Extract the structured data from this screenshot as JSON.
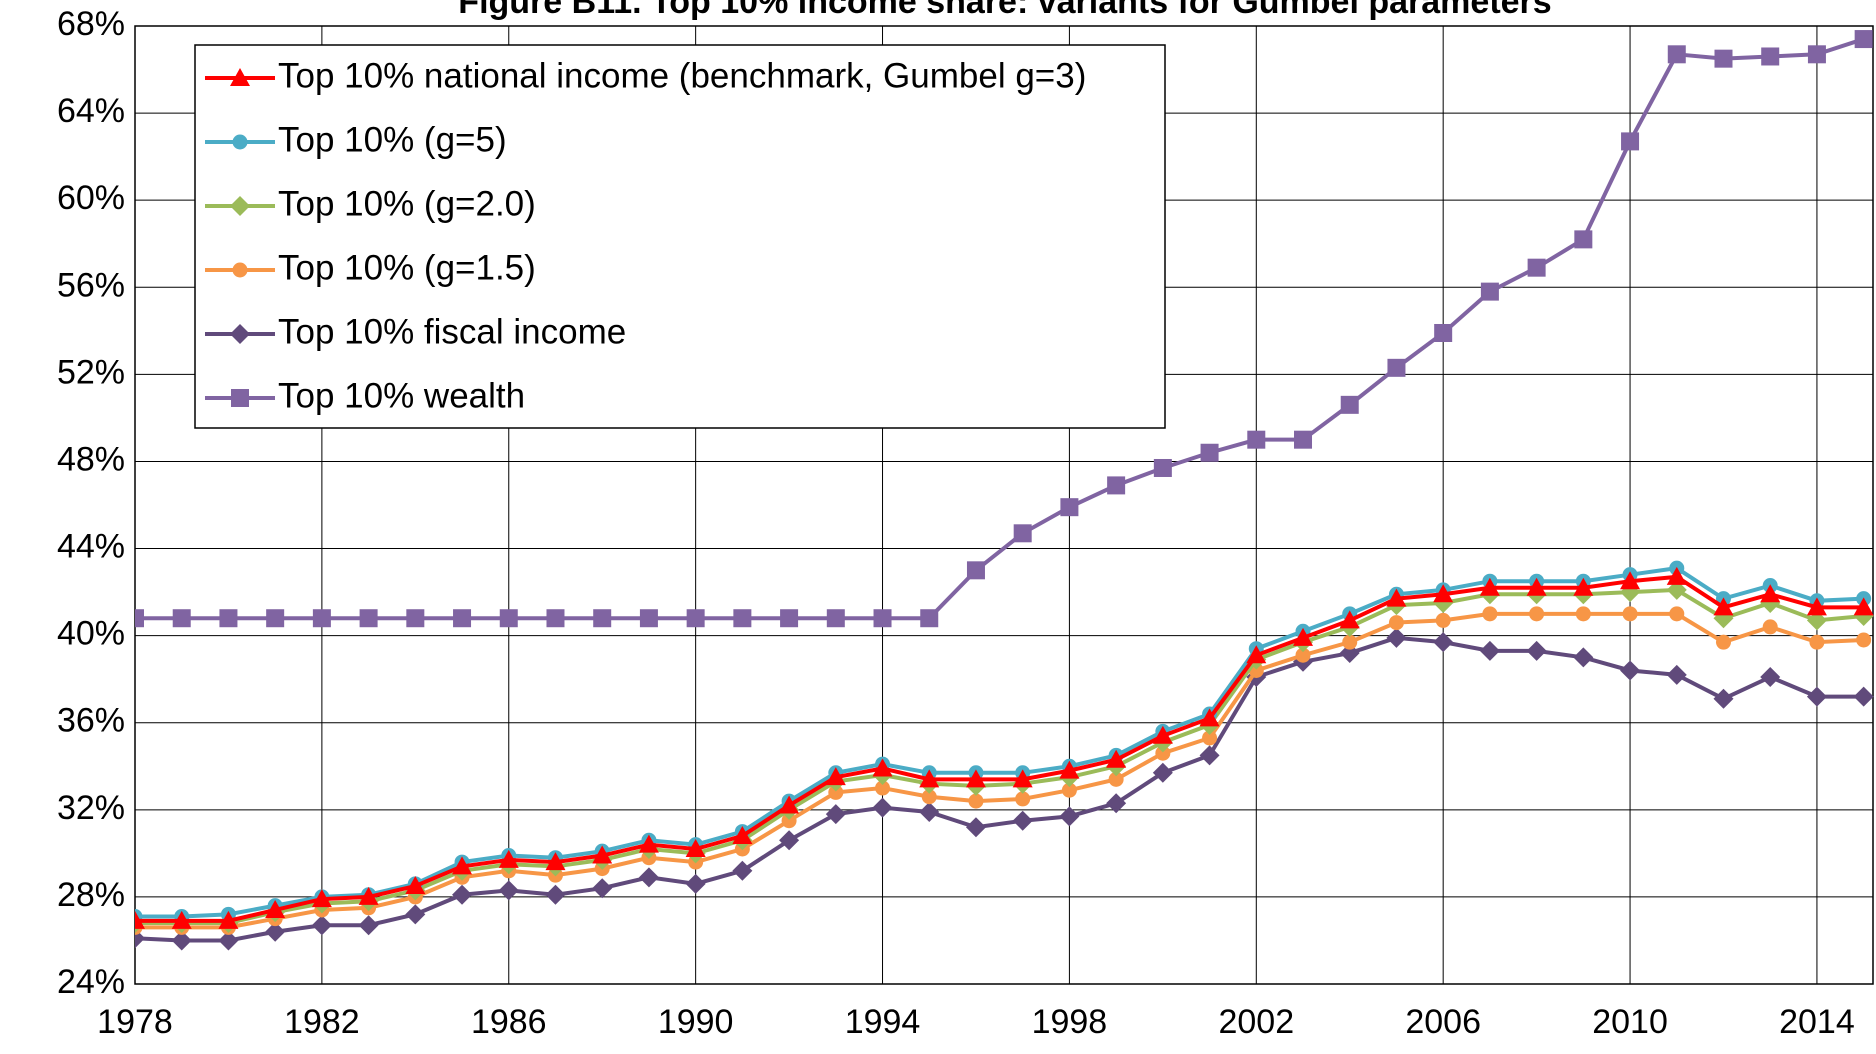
{
  "chart_data": {
    "type": "line",
    "title": "Figure B11. Top 10% income share: variants for Gumbel parameters",
    "x": [
      1978,
      1979,
      1980,
      1981,
      1982,
      1983,
      1984,
      1985,
      1986,
      1987,
      1988,
      1989,
      1990,
      1991,
      1992,
      1993,
      1994,
      1995,
      1996,
      1997,
      1998,
      1999,
      2000,
      2001,
      2002,
      2003,
      2004,
      2005,
      2006,
      2007,
      2008,
      2009,
      2010,
      2011,
      2012,
      2013,
      2014,
      2015
    ],
    "xlim": [
      1978,
      2015.2
    ],
    "xticks": [
      1978,
      1982,
      1986,
      1990,
      1994,
      1998,
      2002,
      2006,
      2010,
      2014
    ],
    "ylim": [
      24,
      68
    ],
    "yticks": [
      {
        "value": 24,
        "label": "24%"
      },
      {
        "value": 28,
        "label": "28%"
      },
      {
        "value": 32,
        "label": "32%"
      },
      {
        "value": 36,
        "label": "36%"
      },
      {
        "value": 40,
        "label": "40%"
      },
      {
        "value": 44,
        "label": "44%"
      },
      {
        "value": 48,
        "label": "48%"
      },
      {
        "value": 52,
        "label": "52%"
      },
      {
        "value": 56,
        "label": "56%"
      },
      {
        "value": 60,
        "label": "60%"
      },
      {
        "value": 64,
        "label": "64%"
      },
      {
        "value": 68,
        "label": "68%"
      }
    ],
    "grid": true,
    "legend": "upper left",
    "series": [
      {
        "name": "Top 10% national income (benchmark, Gumbel g=3)",
        "color": "#ff0000",
        "marker": "triangle",
        "values": [
          26.9,
          26.9,
          26.9,
          27.4,
          27.9,
          28.0,
          28.5,
          29.4,
          29.7,
          29.6,
          29.9,
          30.4,
          30.2,
          30.8,
          32.2,
          33.5,
          33.9,
          33.4,
          33.4,
          33.4,
          33.8,
          34.3,
          35.4,
          36.2,
          39.1,
          39.9,
          40.7,
          41.7,
          41.9,
          42.2,
          42.2,
          42.2,
          42.5,
          42.7,
          41.3,
          41.9,
          41.3,
          41.3
        ]
      },
      {
        "name": "Top 10% (g=5)",
        "color": "#4bacc6",
        "marker": "circle",
        "values": [
          27.1,
          27.1,
          27.2,
          27.6,
          28.0,
          28.1,
          28.6,
          29.6,
          29.9,
          29.8,
          30.1,
          30.6,
          30.4,
          31.0,
          32.4,
          33.7,
          34.1,
          33.7,
          33.7,
          33.7,
          34.0,
          34.5,
          35.6,
          36.4,
          39.4,
          40.2,
          41.0,
          41.9,
          42.1,
          42.5,
          42.5,
          42.5,
          42.8,
          43.1,
          41.7,
          42.3,
          41.6,
          41.7
        ]
      },
      {
        "name": "Top 10% (g=2.0)",
        "color": "#9bbb59",
        "marker": "diamond",
        "values": [
          26.8,
          26.8,
          26.8,
          27.3,
          27.7,
          27.8,
          28.3,
          29.2,
          29.5,
          29.4,
          29.7,
          30.2,
          30.0,
          30.6,
          32.0,
          33.3,
          33.6,
          33.2,
          33.1,
          33.2,
          33.5,
          34.0,
          35.1,
          35.9,
          38.9,
          39.7,
          40.4,
          41.4,
          41.5,
          41.9,
          41.9,
          41.9,
          42.0,
          42.1,
          40.8,
          41.5,
          40.7,
          40.9
        ]
      },
      {
        "name": "Top 10% (g=1.5)",
        "color": "#f79646",
        "marker": "circle",
        "values": [
          26.6,
          26.6,
          26.6,
          27.0,
          27.4,
          27.5,
          28.0,
          28.9,
          29.2,
          29.0,
          29.3,
          29.8,
          29.6,
          30.2,
          31.5,
          32.8,
          33.0,
          32.6,
          32.4,
          32.5,
          32.9,
          33.4,
          34.6,
          35.3,
          38.4,
          39.1,
          39.7,
          40.6,
          40.7,
          41.0,
          41.0,
          41.0,
          41.0,
          41.0,
          39.7,
          40.4,
          39.7,
          39.8
        ]
      },
      {
        "name": "Top 10% fiscal income",
        "color": "#604a7b",
        "marker": "diamond",
        "values": [
          26.1,
          26.0,
          26.0,
          26.4,
          26.7,
          26.7,
          27.2,
          28.1,
          28.3,
          28.1,
          28.4,
          28.9,
          28.6,
          29.2,
          30.6,
          31.8,
          32.1,
          31.9,
          31.2,
          31.5,
          31.7,
          32.3,
          33.7,
          34.5,
          38.1,
          38.8,
          39.2,
          39.9,
          39.7,
          39.3,
          39.3,
          39.0,
          38.4,
          38.2,
          37.1,
          38.1,
          37.2,
          37.2
        ]
      },
      {
        "name": "Top 10% wealth",
        "color": "#8064a2",
        "marker": "square",
        "values": [
          40.8,
          40.8,
          40.8,
          40.8,
          40.8,
          40.8,
          40.8,
          40.8,
          40.8,
          40.8,
          40.8,
          40.8,
          40.8,
          40.8,
          40.8,
          40.8,
          40.8,
          40.8,
          43.0,
          44.7,
          45.9,
          46.9,
          47.7,
          48.4,
          49.0,
          49.0,
          50.6,
          52.3,
          53.9,
          55.8,
          56.9,
          58.2,
          62.7,
          66.7,
          66.5,
          66.6,
          66.7,
          67.4
        ]
      }
    ]
  }
}
